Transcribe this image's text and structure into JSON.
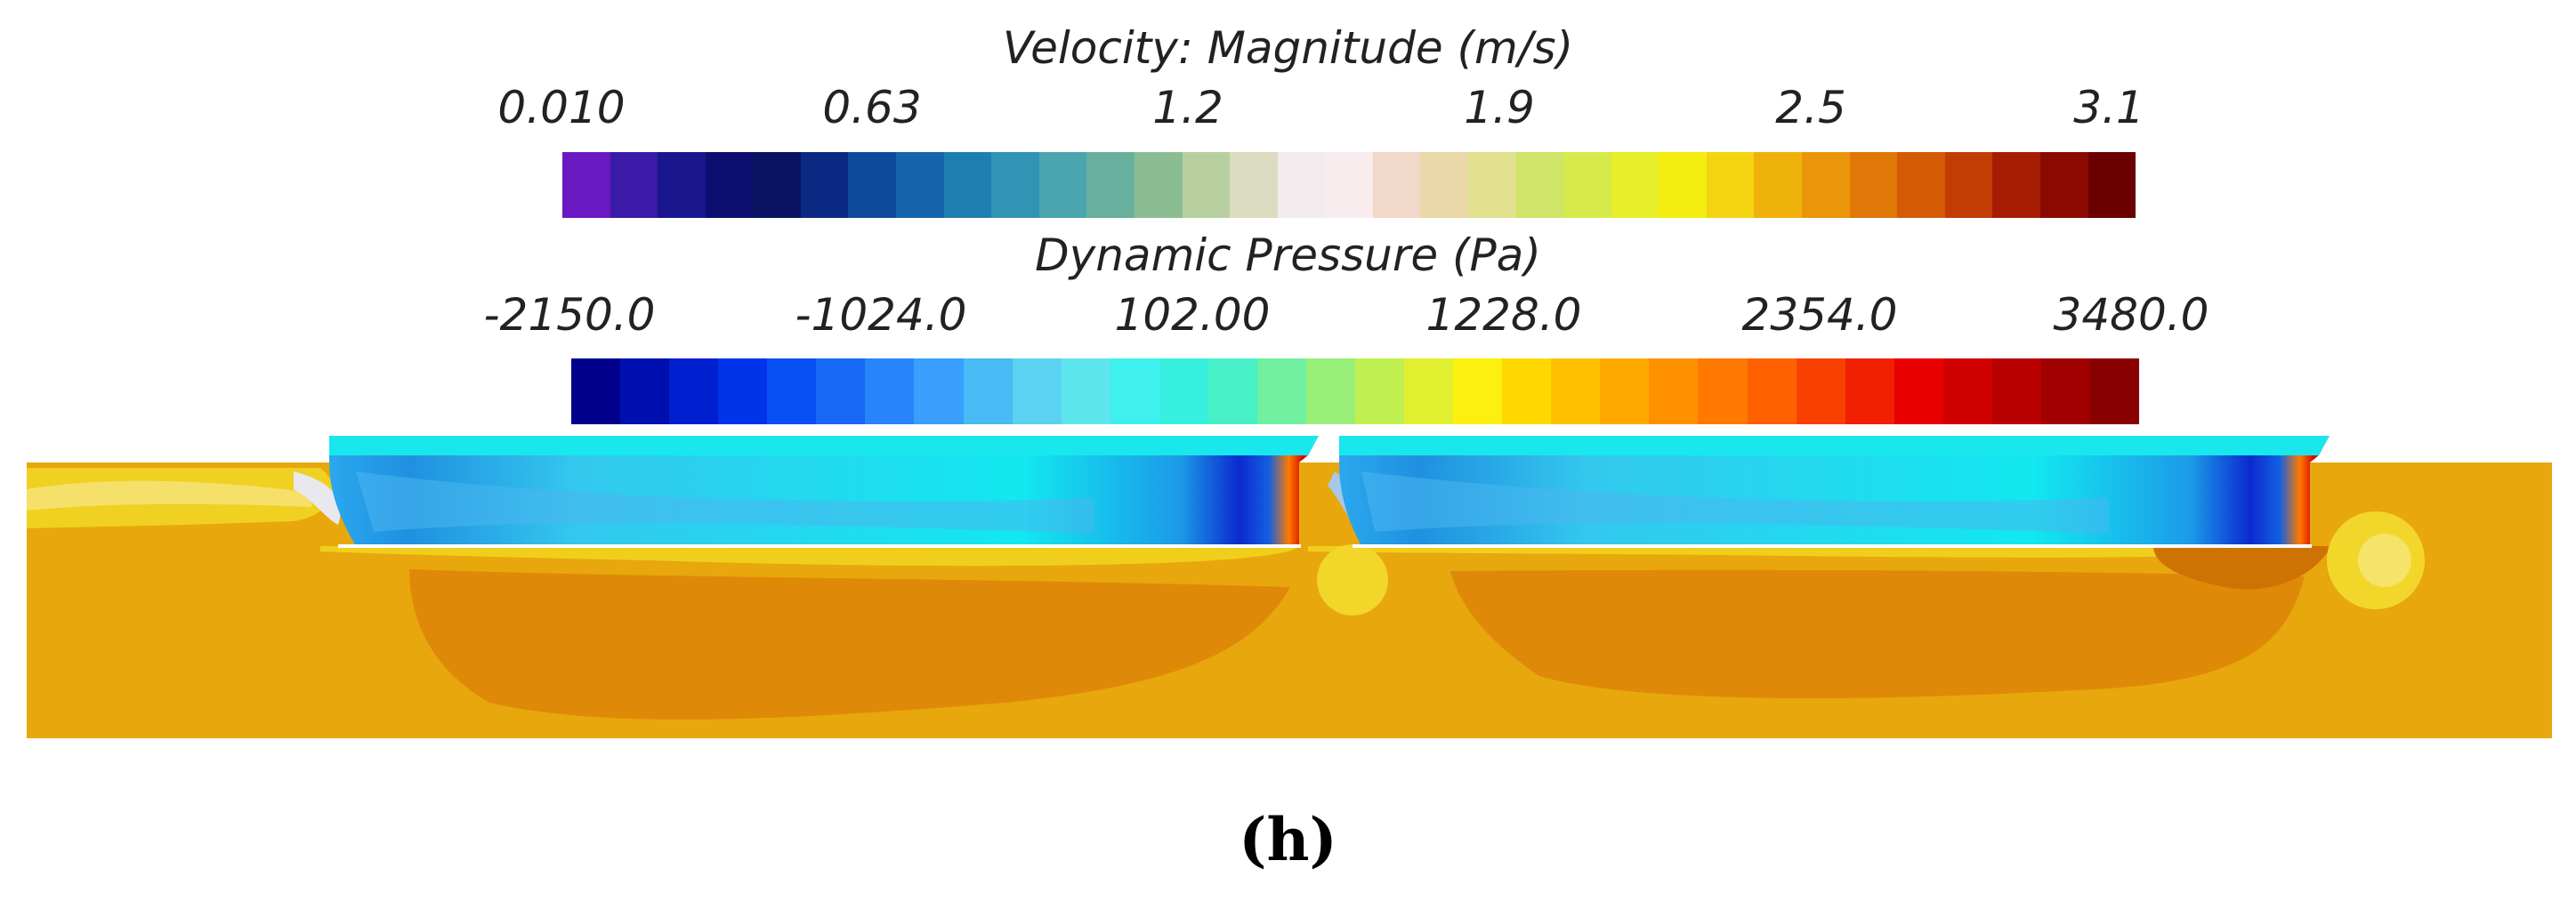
{
  "velocity_legend": {
    "title": "Velocity: Magnitude (m/s)",
    "ticks": [
      "0.010",
      "0.63",
      "1.2",
      "1.9",
      "2.5",
      "3.1"
    ],
    "colors": [
      "#6a18c2",
      "#3a1aa6",
      "#1a168e",
      "#0c0f70",
      "#0a1262",
      "#0a2a84",
      "#0d4a9c",
      "#1564aa",
      "#1f7eb1",
      "#3194b4",
      "#4aa5ae",
      "#68b09d",
      "#8cbc92",
      "#b7cf9f",
      "#dcdcc0",
      "#f3ecef",
      "#f8ecef",
      "#f2d8c8",
      "#ead8a8",
      "#e0e08e",
      "#cfe468",
      "#d6ea4c",
      "#e8ee2a",
      "#f3ee10",
      "#f4d40e",
      "#efb20c",
      "#ea950a",
      "#e07808",
      "#d45a06",
      "#c23c04",
      "#a61c02",
      "#8a0a02",
      "#6a0000"
    ]
  },
  "pressure_legend": {
    "title": "Dynamic Pressure (Pa)",
    "ticks": [
      "-2150.0",
      "-1024.0",
      "102.00",
      "1228.0",
      "2354.0",
      "3480.0"
    ],
    "colors": [
      "#00008c",
      "#0010b0",
      "#0020d0",
      "#0034ea",
      "#0850f4",
      "#1868f8",
      "#2884fa",
      "#38a0fc",
      "#48baf4",
      "#5ad2f0",
      "#5ee6ee",
      "#3ef0ee",
      "#38f0e0",
      "#48f0c8",
      "#70f0a0",
      "#98f078",
      "#c0f050",
      "#e0f030",
      "#fcf010",
      "#ffd800",
      "#ffc000",
      "#ffa800",
      "#ff9000",
      "#ff7800",
      "#ff6000",
      "#f84000",
      "#f02000",
      "#e80000",
      "#d00000",
      "#b80000",
      "#a00000",
      "#880000"
    ]
  },
  "caption": "(h)"
}
